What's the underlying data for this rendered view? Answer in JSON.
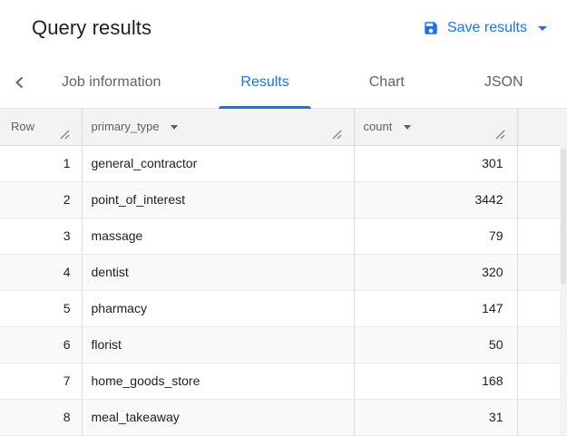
{
  "header": {
    "title": "Query results",
    "save_results_label": "Save results"
  },
  "tabs": {
    "items": [
      {
        "label": "Job information",
        "active": false
      },
      {
        "label": "Results",
        "active": true
      },
      {
        "label": "Chart",
        "active": false
      },
      {
        "label": "JSON",
        "active": false
      }
    ]
  },
  "table": {
    "columns": [
      {
        "label": "Row",
        "sortable": false
      },
      {
        "label": "primary_type",
        "sortable": true
      },
      {
        "label": "count",
        "sortable": true
      }
    ],
    "rows": [
      {
        "row": "1",
        "primary_type": "general_contractor",
        "count": "301"
      },
      {
        "row": "2",
        "primary_type": "point_of_interest",
        "count": "3442"
      },
      {
        "row": "3",
        "primary_type": "massage",
        "count": "79"
      },
      {
        "row": "4",
        "primary_type": "dentist",
        "count": "320"
      },
      {
        "row": "5",
        "primary_type": "pharmacy",
        "count": "147"
      },
      {
        "row": "6",
        "primary_type": "florist",
        "count": "50"
      },
      {
        "row": "7",
        "primary_type": "home_goods_store",
        "count": "168"
      },
      {
        "row": "8",
        "primary_type": "meal_takeaway",
        "count": "31"
      }
    ]
  },
  "colors": {
    "accent": "#1a73e8",
    "text_primary": "#202124",
    "text_secondary": "#5f6368",
    "header_bg": "#f1f3f4",
    "row_alt_bg": "#f8f9fa",
    "border": "#dadce0"
  }
}
